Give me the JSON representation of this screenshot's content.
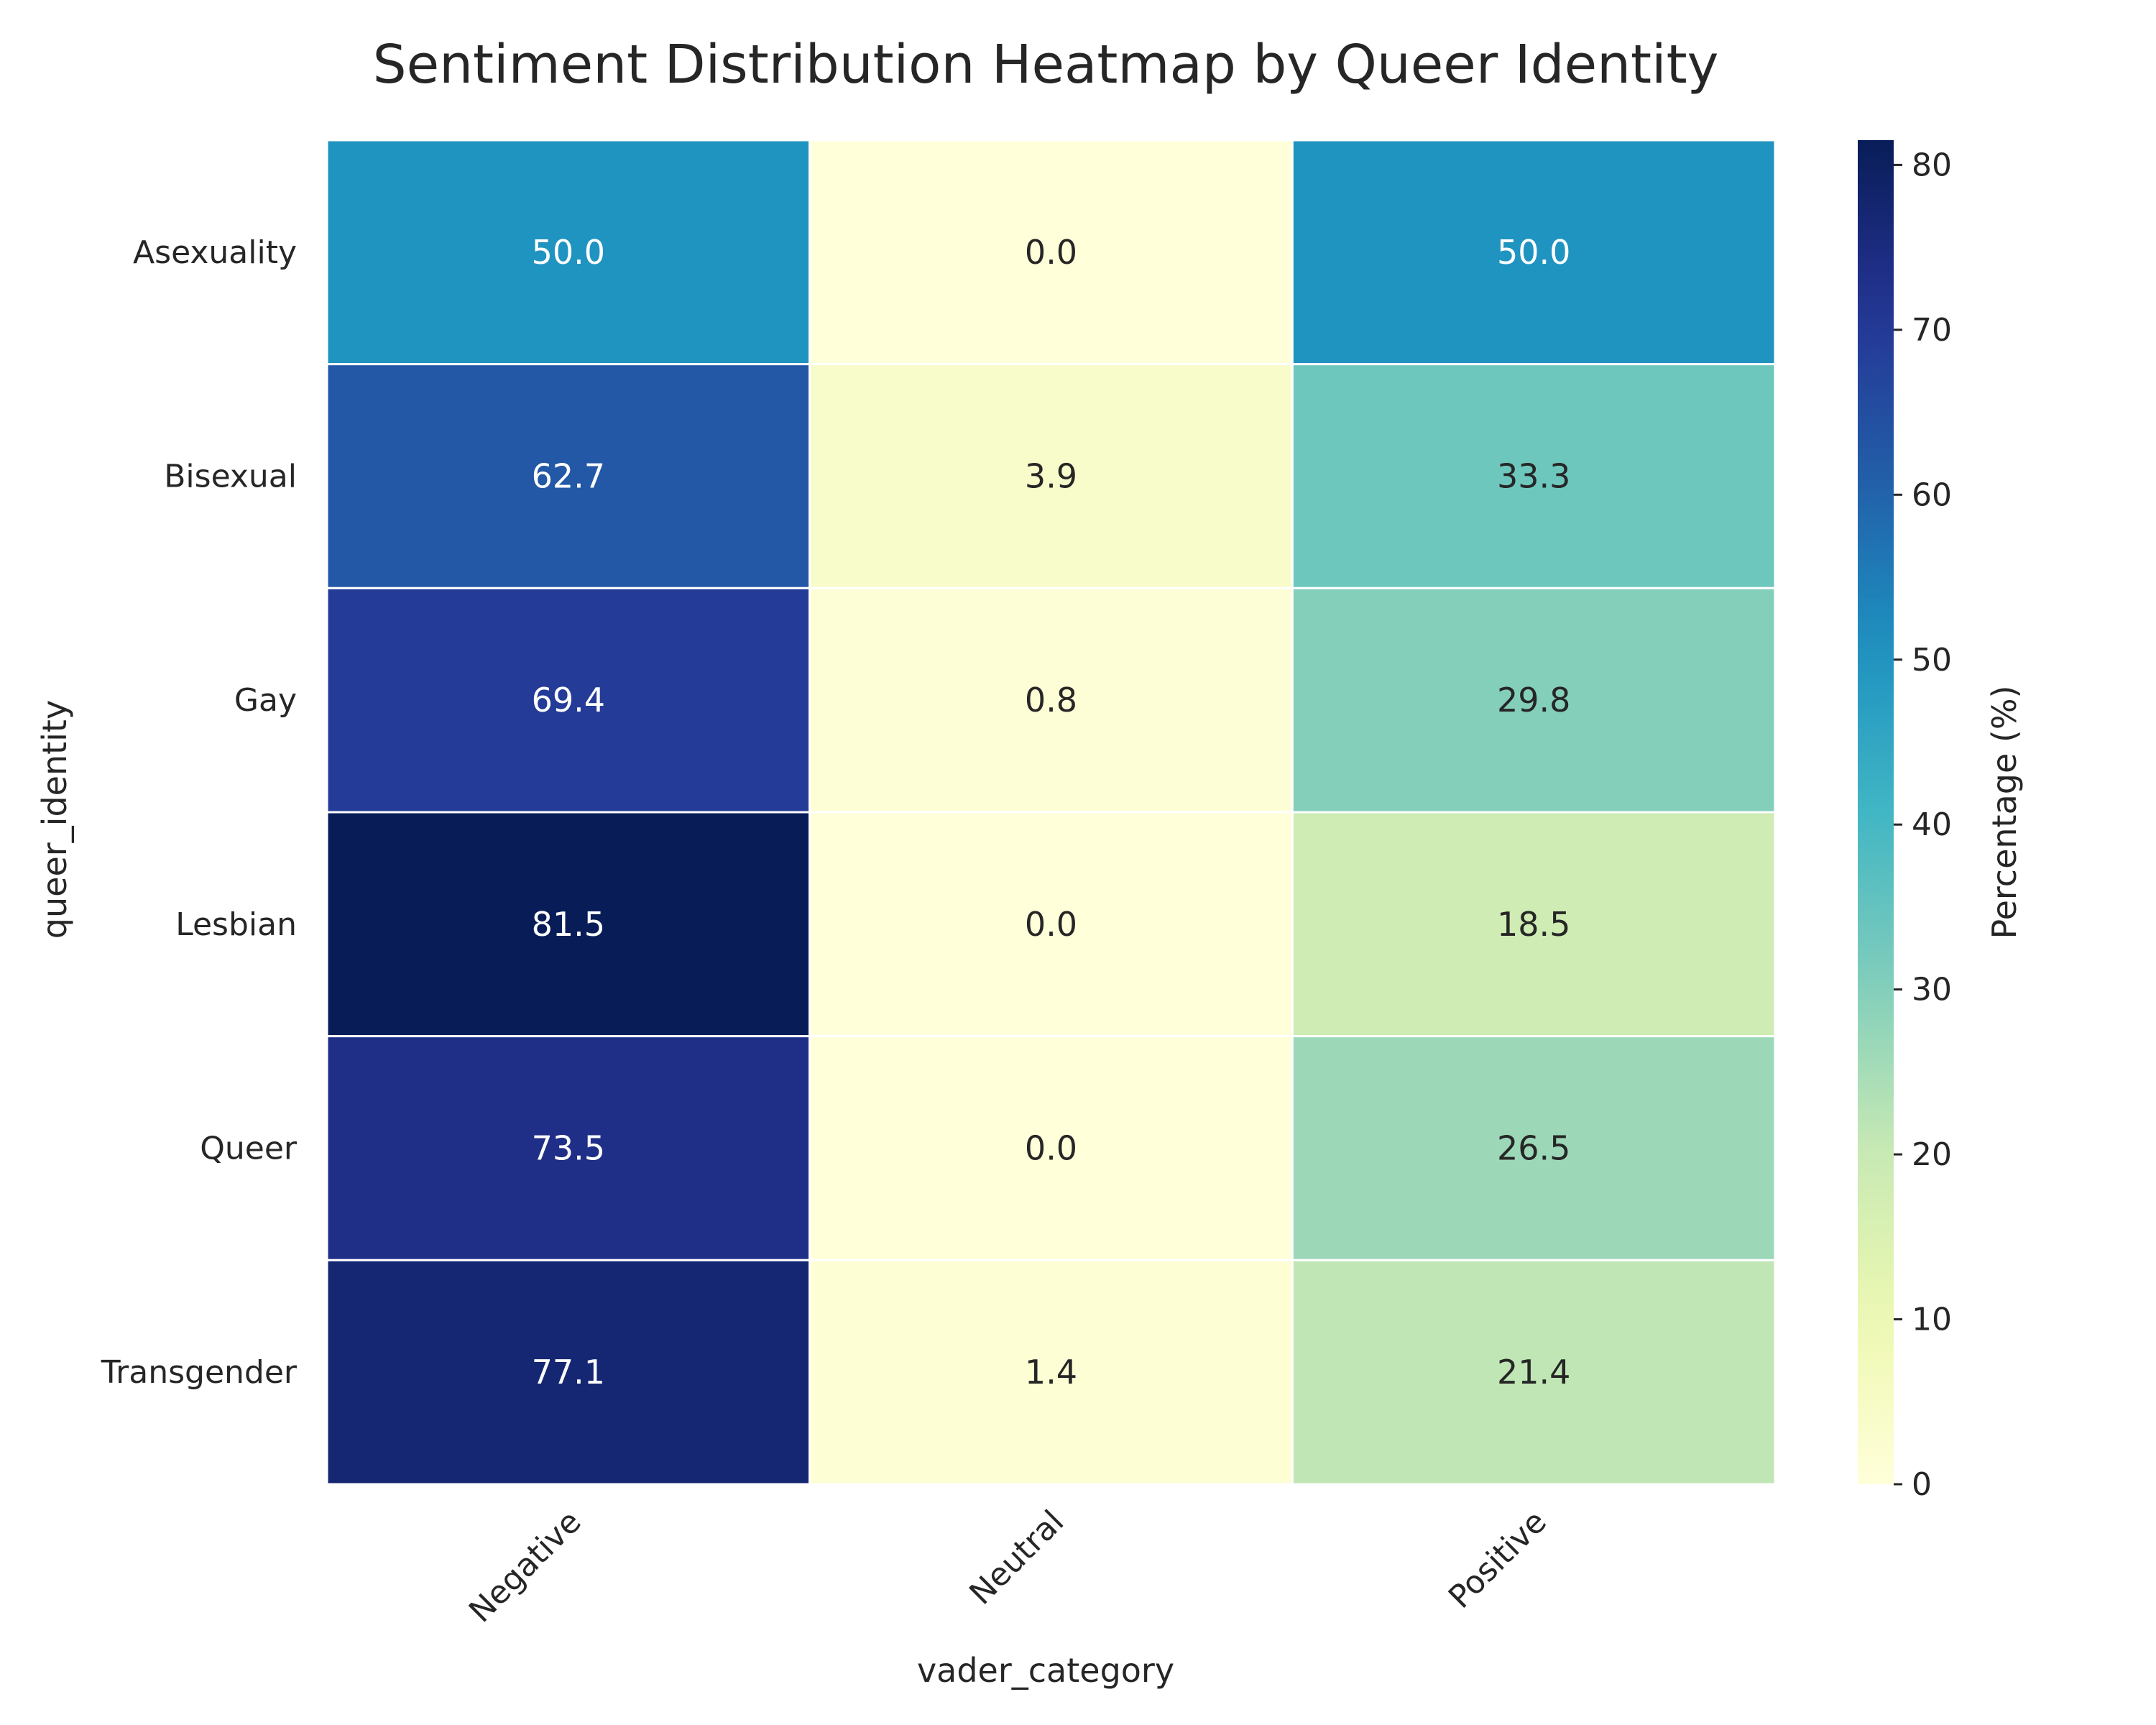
{
  "chart_data": {
    "type": "heatmap",
    "title": "Sentiment Distribution Heatmap by Queer Identity",
    "xlabel": "vader_category",
    "ylabel": "queer_identity",
    "x_categories": [
      "Negative",
      "Neutral",
      "Positive"
    ],
    "y_categories": [
      "Asexuality",
      "Bisexual",
      "Gay",
      "Lesbian",
      "Queer",
      "Transgender"
    ],
    "values": [
      [
        50.0,
        0.0,
        50.0
      ],
      [
        62.7,
        3.9,
        33.3
      ],
      [
        69.4,
        0.8,
        29.8
      ],
      [
        81.5,
        0.0,
        18.5
      ],
      [
        73.5,
        0.0,
        26.5
      ],
      [
        77.1,
        1.4,
        21.4
      ]
    ],
    "value_format": "0.0",
    "colormap": "YlGnBu",
    "colorbar": {
      "label": "Percentage (%)",
      "range": [
        0,
        81.5
      ],
      "ticks": [
        0,
        10,
        20,
        30,
        40,
        50,
        60,
        70,
        80
      ]
    },
    "grid": false
  }
}
